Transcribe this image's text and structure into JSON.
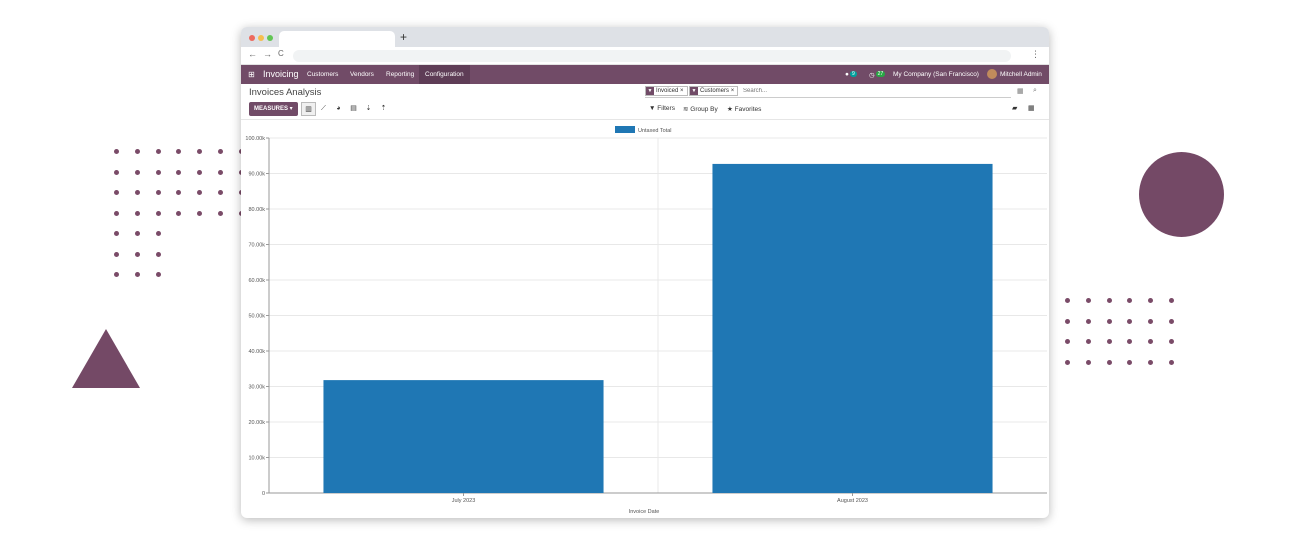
{
  "browser": {
    "new_tab_symbol": "+",
    "back_icon": "←",
    "forward_icon": "→",
    "reload_icon": "C",
    "menu_icon": "⋮"
  },
  "navbar": {
    "apps_icon": "grid-icon",
    "app_name": "Invoicing",
    "menu_items": [
      "Customers",
      "Vendors",
      "Reporting",
      "Configuration"
    ],
    "messages_count": "9",
    "activities_count": "27",
    "company": "My Company (San Francisco)",
    "user": "Mitchell Admin",
    "accent_color": "#714b67"
  },
  "control_panel": {
    "title": "Invoices Analysis",
    "facets": [
      {
        "label": "Invoiced",
        "remove": "×"
      },
      {
        "label": "Customers",
        "remove": "×"
      }
    ],
    "search_placeholder": "Search...",
    "measures_label": "MEASURES ▾",
    "filters_label": "Filters",
    "group_by_label": "Group By",
    "favorites_label": "Favorites"
  },
  "chart_data": {
    "type": "bar",
    "categories": [
      "July 2023",
      "August 2023"
    ],
    "series": [
      {
        "name": "Untaxed Total",
        "values": [
          31800,
          92700
        ],
        "color": "#1f77b4"
      }
    ],
    "xlabel": "Invoice Date",
    "ylabel": "",
    "ylim": [
      0,
      100000
    ],
    "yticks": [
      0,
      10000,
      20000,
      30000,
      40000,
      50000,
      60000,
      70000,
      80000,
      90000,
      100000
    ],
    "ytick_labels": [
      "0",
      "10.00k",
      "20.00k",
      "30.00k",
      "40.00k",
      "50.00k",
      "60.00k",
      "70.00k",
      "80.00k",
      "90.00k",
      "100.00k"
    ],
    "grid": true,
    "legend_position": "top-center"
  }
}
